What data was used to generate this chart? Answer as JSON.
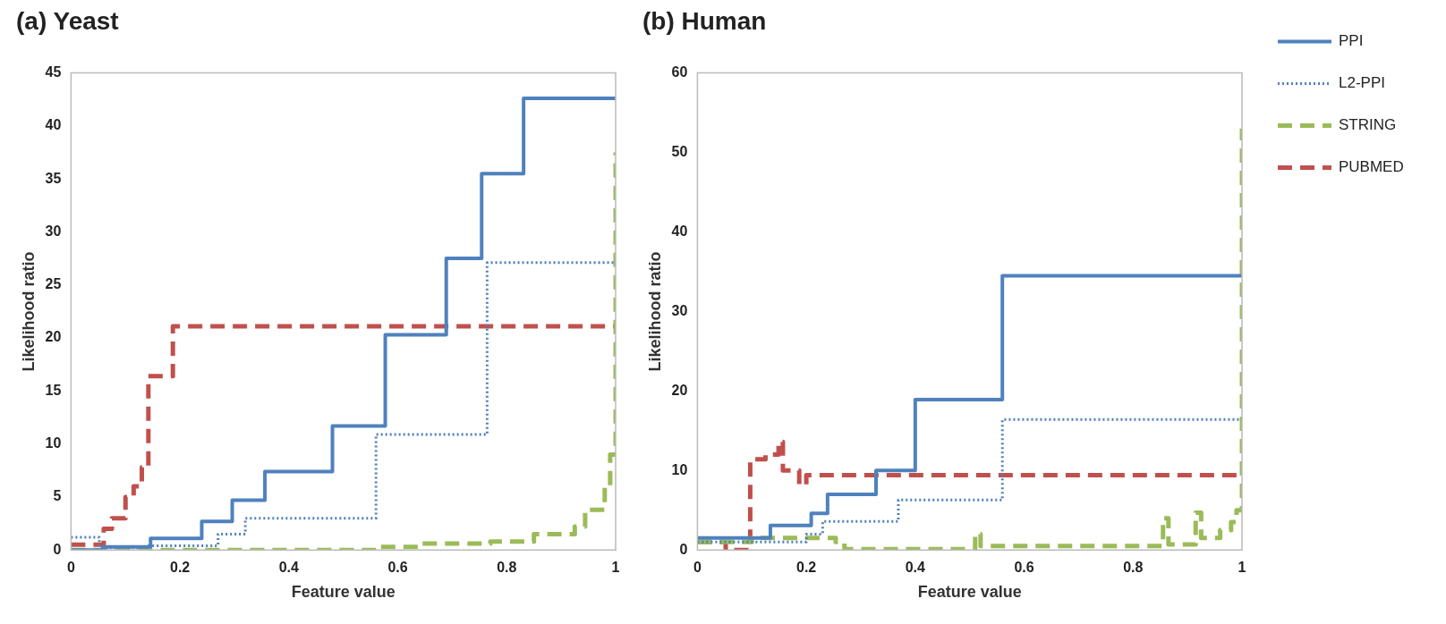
{
  "chart_data": [
    {
      "type": "step",
      "title": "(a) Yeast",
      "xlabel": "Feature value",
      "ylabel": "Likelihood ratio",
      "xlim": [
        0,
        1
      ],
      "xticks": [
        0,
        0.2,
        0.4,
        0.6,
        0.8,
        1
      ],
      "ylim": [
        0,
        45
      ],
      "yticks": [
        0,
        5,
        10,
        15,
        20,
        25,
        30,
        35,
        40,
        45
      ],
      "grid": false,
      "legend": false,
      "series": [
        {
          "color": "#4f81bd",
          "line_style": "solid",
          "x": [
            0,
            0.06,
            0.146,
            0.24,
            0.296,
            0.356,
            0.48,
            0.577,
            0.689,
            0.754,
            0.831,
            1
          ],
          "values": [
            0,
            0.3,
            1.1,
            2.7,
            4.7,
            7.4,
            11.7,
            20.3,
            27.5,
            35.5,
            42.6,
            42.6
          ]
        },
        {
          "color": "#4f81bd",
          "line_style": "dotted",
          "x": [
            0,
            0.052,
            0.14,
            0.27,
            0.32,
            0.56,
            0.764,
            1
          ],
          "values": [
            1.2,
            0.2,
            0.4,
            1.5,
            3,
            10.9,
            27.1,
            27.1
          ]
        },
        {
          "color": "#9bbb59",
          "line_style": "dashed",
          "x": [
            0,
            0.56,
            0.64,
            0.77,
            0.85,
            0.925,
            0.944,
            0.98,
            0.99,
            1
          ],
          "values": [
            0,
            0.3,
            0.6,
            0.8,
            1.5,
            2.2,
            3.8,
            6,
            9,
            37.5
          ]
        },
        {
          "color": "#c0504d",
          "line_style": "dashed",
          "x": [
            0,
            0.06,
            0.075,
            0.1,
            0.115,
            0.13,
            0.142,
            0.187,
            1
          ],
          "values": [
            0.5,
            2,
            3,
            5,
            6,
            7.8,
            16.4,
            21.1,
            21.1
          ]
        }
      ]
    },
    {
      "type": "step",
      "title": "(b) Human",
      "xlabel": "Feature value",
      "ylabel": "Likelihood ratio",
      "xlim": [
        0,
        1
      ],
      "xticks": [
        0,
        0.2,
        0.4,
        0.6,
        0.8,
        1
      ],
      "ylim": [
        0,
        60
      ],
      "yticks": [
        0,
        10,
        20,
        30,
        40,
        50,
        60
      ],
      "grid": false,
      "legend": "right",
      "series": [
        {
          "name": "PPI",
          "color": "#4f81bd",
          "line_style": "solid",
          "x": [
            0,
            0.134,
            0.209,
            0.239,
            0.328,
            0.4,
            0.56,
            1
          ],
          "values": [
            1.5,
            3.1,
            4.6,
            7,
            10,
            18.9,
            34.5,
            34.5
          ]
        },
        {
          "name": "L2-PPI",
          "color": "#4f81bd",
          "line_style": "dotted",
          "x": [
            0,
            0.2,
            0.23,
            0.369,
            0.56,
            1
          ],
          "values": [
            1,
            2,
            3.6,
            6.3,
            16.4,
            16.4
          ]
        },
        {
          "name": "STRING",
          "color": "#9bbb59",
          "line_style": "dashed",
          "x": [
            0,
            0.1,
            0.254,
            0.27,
            0.51,
            0.52,
            0.855,
            0.865,
            0.915,
            0.925,
            0.96,
            0.98,
            0.99,
            1
          ],
          "values": [
            1,
            1.5,
            1,
            0.1,
            2,
            0.5,
            4,
            0.7,
            4.7,
            1.5,
            2.5,
            3.5,
            5,
            53
          ]
        },
        {
          "name": "PUBMED",
          "color": "#c0504d",
          "line_style": "dashed",
          "x": [
            0,
            0.052,
            0.097,
            0.125,
            0.149,
            0.157,
            0.187,
            0.2,
            1
          ],
          "values": [
            1,
            0,
            11.4,
            12,
            13.6,
            10,
            8.2,
            9.4,
            9.4
          ]
        }
      ]
    }
  ]
}
